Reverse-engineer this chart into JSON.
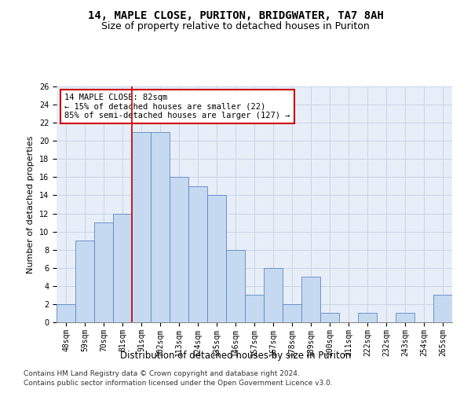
{
  "title1": "14, MAPLE CLOSE, PURITON, BRIDGWATER, TA7 8AH",
  "title2": "Size of property relative to detached houses in Puriton",
  "xlabel": "Distribution of detached houses by size in Puriton",
  "ylabel": "Number of detached properties",
  "categories": [
    "48sqm",
    "59sqm",
    "70sqm",
    "81sqm",
    "91sqm",
    "102sqm",
    "113sqm",
    "124sqm",
    "135sqm",
    "146sqm",
    "157sqm",
    "167sqm",
    "178sqm",
    "189sqm",
    "200sqm",
    "211sqm",
    "222sqm",
    "232sqm",
    "243sqm",
    "254sqm",
    "265sqm"
  ],
  "values": [
    2,
    9,
    11,
    12,
    21,
    21,
    16,
    15,
    14,
    8,
    3,
    6,
    2,
    5,
    1,
    0,
    1,
    0,
    1,
    0,
    3
  ],
  "bar_color": "#c5d9f1",
  "bar_edge_color": "#5b87c5",
  "vline_x_index": 3.5,
  "vline_color": "#cc0000",
  "annotation_text": "14 MAPLE CLOSE: 82sqm\n← 15% of detached houses are smaller (22)\n85% of semi-detached houses are larger (127) →",
  "annotation_box_color": "#ffffff",
  "annotation_box_edge_color": "#cc0000",
  "ylim": [
    0,
    26
  ],
  "yticks": [
    0,
    2,
    4,
    6,
    8,
    10,
    12,
    14,
    16,
    18,
    20,
    22,
    24,
    26
  ],
  "footer1": "Contains HM Land Registry data © Crown copyright and database right 2024.",
  "footer2": "Contains public sector information licensed under the Open Government Licence v3.0.",
  "bg_color": "#e8eef8",
  "grid_color": "#c8d4e8",
  "title1_fontsize": 10,
  "title2_fontsize": 9,
  "annot_fontsize": 7.5,
  "tick_fontsize": 7,
  "xlabel_fontsize": 8.5,
  "ylabel_fontsize": 8,
  "footer_fontsize": 6.5
}
